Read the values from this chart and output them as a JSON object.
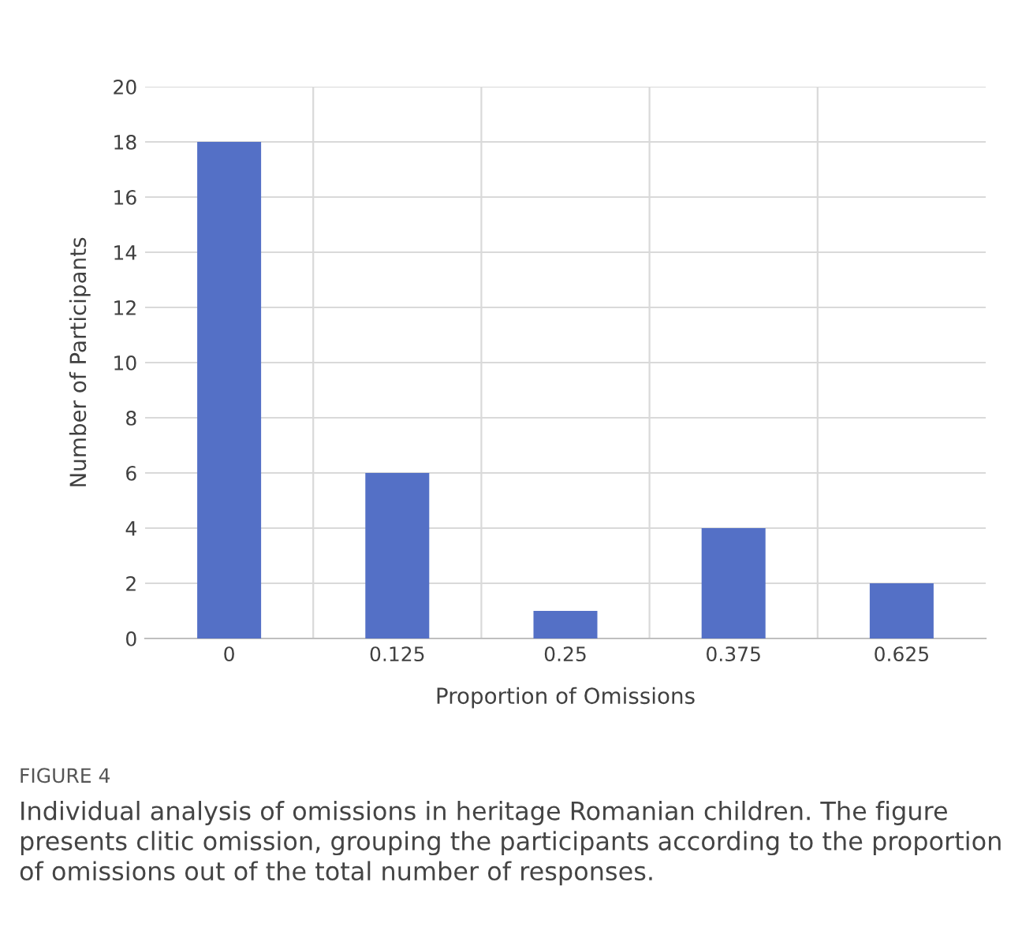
{
  "chart_data": {
    "type": "bar",
    "xlabel": "Proportion of Omissions",
    "ylabel": "Number of Participants",
    "categories": [
      "0",
      "0.125",
      "0.25",
      "0.375",
      "0.625"
    ],
    "values": [
      18,
      6,
      1,
      4,
      2
    ],
    "color": "#5470c6",
    "ylim": [
      0,
      20
    ],
    "yticks": [
      0,
      2,
      4,
      6,
      8,
      10,
      12,
      14,
      16,
      18,
      20
    ],
    "grid": true,
    "annotations": [
      "FIGURE 4",
      "Individual analysis of omissions in heritage Romanian children. The figure presents clitic omission, grouping the participants according to the proportion of omissions out of the total number of responses."
    ]
  }
}
